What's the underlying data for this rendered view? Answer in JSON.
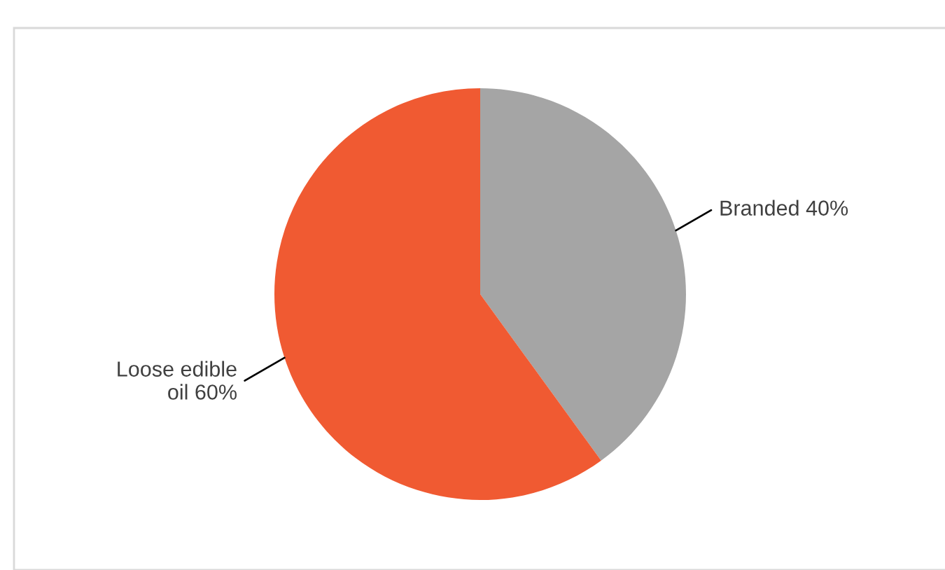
{
  "chart_data": {
    "type": "pie",
    "categories": [
      "Branded",
      "Loose edible\noil"
    ],
    "values": [
      40,
      60
    ],
    "colors": [
      "#a5a5a5",
      "#f05a32"
    ],
    "value_labels": [
      "40%",
      "60%"
    ]
  }
}
